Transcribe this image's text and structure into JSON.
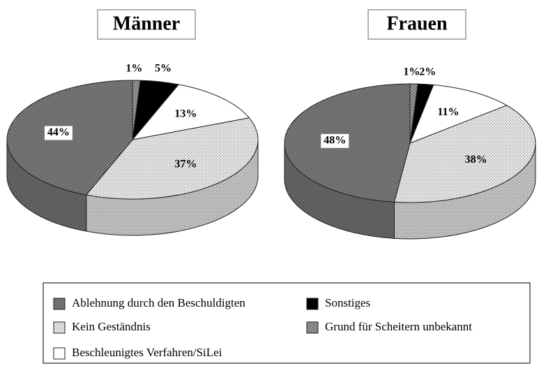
{
  "chart_data": [
    {
      "type": "pie",
      "title": "Männer",
      "values": [
        44,
        37,
        13,
        5,
        1
      ],
      "value_labels": [
        "44%",
        "37%",
        "13%",
        "5%",
        "1%"
      ]
    },
    {
      "type": "pie",
      "title": "Frauen",
      "values": [
        48,
        38,
        11,
        2,
        1
      ],
      "value_labels": [
        "48%",
        "38%",
        "11%",
        "2%",
        "1%"
      ]
    }
  ],
  "legend": {
    "labels": [
      "Ablehnung durch den Beschuldigten",
      "Kein Geständnis",
      "Beschleunigtes Verfahren/SiLei",
      "Sonstiges",
      "Grund für Scheitern unbekannt"
    ],
    "colors": [
      "#8c8c8c",
      "#e4e4e4",
      "#ffffff",
      "#000000",
      "#a8a8a8"
    ]
  }
}
